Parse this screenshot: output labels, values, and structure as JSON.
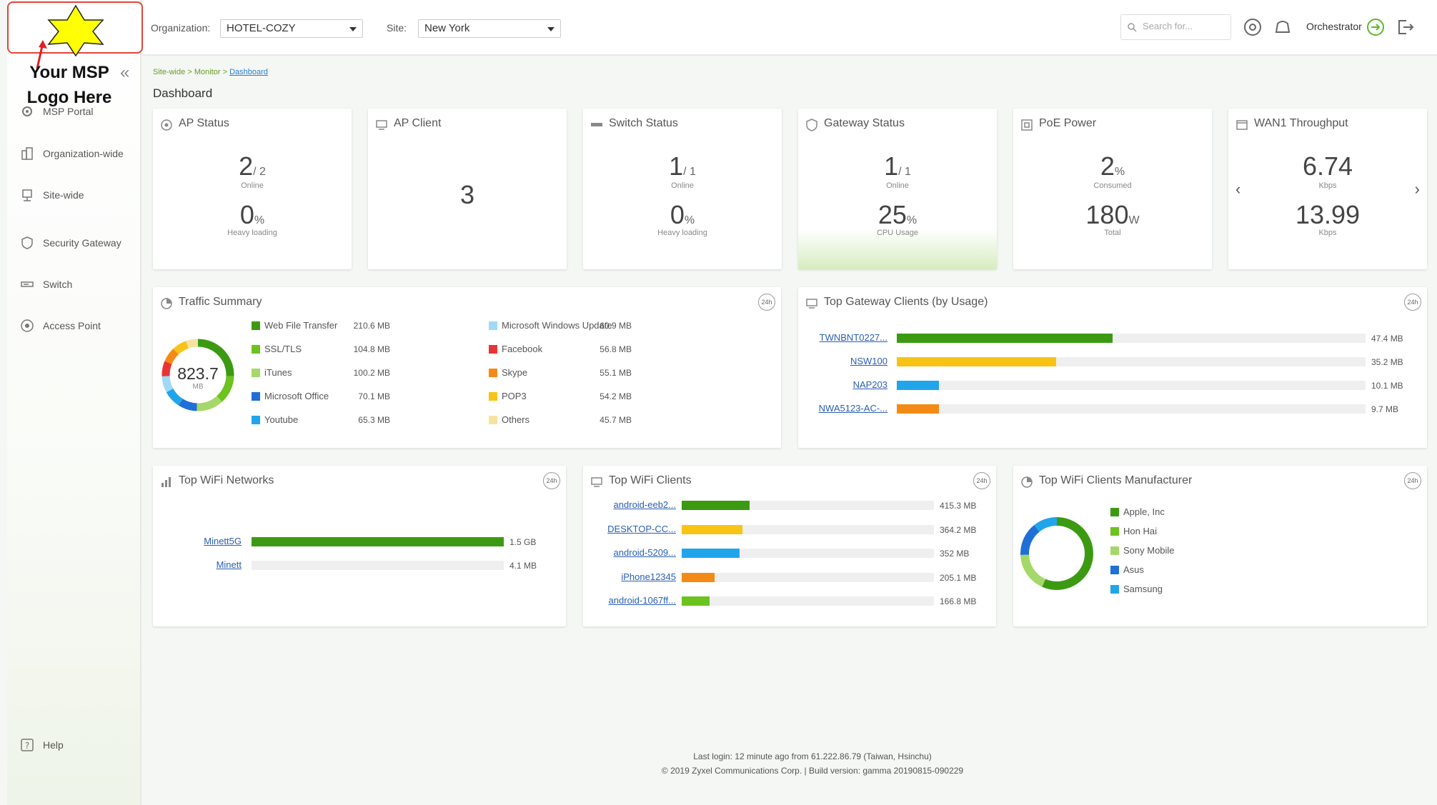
{
  "logo": {
    "text_line1": "Your MSP",
    "text_line2": "Logo Here"
  },
  "sidebar": {
    "items": [
      {
        "label": "MSP Portal"
      },
      {
        "label": "Organization-wide"
      },
      {
        "label": "Site-wide"
      },
      {
        "label": "Security Gateway"
      },
      {
        "label": "Switch"
      },
      {
        "label": "Access Point"
      }
    ],
    "help": "Help"
  },
  "topbar": {
    "org_label": "Organization:",
    "org_value": "HOTEL-COZY",
    "site_label": "Site:",
    "site_value": "New York",
    "search_placeholder": "Search for...",
    "orchestrator": "Orchestrator"
  },
  "breadcrumb": {
    "part1": "Site-wide",
    "sep": ">",
    "part2": "Monitor",
    "current": "Dashboard"
  },
  "page_title": "Dashboard",
  "cards": {
    "ap_status": {
      "title": "AP Status",
      "online": "2",
      "total": "/ 2",
      "online_label": "Online",
      "loading": "0",
      "loading_unit": "%",
      "loading_label": "Heavy loading"
    },
    "ap_client": {
      "title": "AP Client",
      "count": "3"
    },
    "switch_status": {
      "title": "Switch Status",
      "online": "1",
      "total": "/ 1",
      "online_label": "Online",
      "loading": "0",
      "loading_unit": "%",
      "loading_label": "Heavy loading"
    },
    "gateway_status": {
      "title": "Gateway Status",
      "online": "1",
      "total": "/ 1",
      "online_label": "Online",
      "cpu": "25",
      "cpu_unit": "%",
      "cpu_label": "CPU Usage"
    },
    "poe_power": {
      "title": "PoE Power",
      "consumed": "2",
      "consumed_unit": "%",
      "consumed_label": "Consumed",
      "total": "180",
      "total_unit": "W",
      "total_label": "Total"
    },
    "wan_throughput": {
      "title": "WAN1 Throughput",
      "up": "6.74",
      "up_unit": "Kbps",
      "down": "13.99",
      "down_unit": "Kbps"
    }
  },
  "traffic_summary": {
    "title": "Traffic Summary",
    "badge": "24h",
    "total": "823.7",
    "total_unit": "MB",
    "items": [
      {
        "name": "Web File Transfer",
        "value": "210.6 MB",
        "color": "#3c9a12"
      },
      {
        "name": "SSL/TLS",
        "value": "104.8 MB",
        "color": "#6cc21e"
      },
      {
        "name": "iTunes",
        "value": "100.2 MB",
        "color": "#a5d86a"
      },
      {
        "name": "Microsoft Office",
        "value": "70.1 MB",
        "color": "#1f6fd6"
      },
      {
        "name": "Youtube",
        "value": "65.3 MB",
        "color": "#21a5ea"
      },
      {
        "name": "Microsoft Windows Update",
        "value": "60.9 MB",
        "color": "#9fd9f5"
      },
      {
        "name": "Facebook",
        "value": "56.8 MB",
        "color": "#e83434"
      },
      {
        "name": "Skype",
        "value": "55.1 MB",
        "color": "#f48a16"
      },
      {
        "name": "POP3",
        "value": "54.2 MB",
        "color": "#f7c416"
      },
      {
        "name": "Others",
        "value": "45.7 MB",
        "color": "#f6e3a0"
      }
    ]
  },
  "top_gateway_clients": {
    "title": "Top Gateway Clients (by Usage)",
    "badge": "24h",
    "rows": [
      {
        "name": "TWNBNT0227...",
        "value": "47.4 MB",
        "pct": 0.46,
        "color": "#3c9a12"
      },
      {
        "name": "NSW100",
        "value": "35.2 MB",
        "pct": 0.34,
        "color": "#f7c416"
      },
      {
        "name": "NAP203",
        "value": "10.1 MB",
        "pct": 0.09,
        "color": "#21a5ea"
      },
      {
        "name": "NWA5123-AC-...",
        "value": "9.7 MB",
        "pct": 0.09,
        "color": "#f48a16"
      }
    ]
  },
  "top_wifi_networks": {
    "title": "Top WiFi Networks",
    "badge": "24h",
    "rows": [
      {
        "name": "Minett5G",
        "value": "1.5 GB",
        "pct": 1.0,
        "color": "#3c9a12"
      },
      {
        "name": "Minett",
        "value": "4.1 MB",
        "pct": 0.0,
        "color": "#3c9a12"
      }
    ]
  },
  "top_wifi_clients": {
    "title": "Top WiFi Clients",
    "badge": "24h",
    "rows": [
      {
        "name": "android-eeb2...",
        "value": "415.3 MB",
        "pct": 0.27,
        "color": "#3c9a12"
      },
      {
        "name": "DESKTOP-CC...",
        "value": "364.2 MB",
        "pct": 0.24,
        "color": "#f7c416"
      },
      {
        "name": "android-5209...",
        "value": "352 MB",
        "pct": 0.23,
        "color": "#21a5ea"
      },
      {
        "name": "iPhone12345",
        "value": "205.1 MB",
        "pct": 0.13,
        "color": "#f48a16"
      },
      {
        "name": "android-1067ff...",
        "value": "166.8 MB",
        "pct": 0.11,
        "color": "#6cc21e"
      }
    ]
  },
  "top_wifi_manufacturer": {
    "title": "Top WiFi Clients Manufacturer",
    "badge": "24h",
    "items": [
      {
        "name": "Apple, Inc",
        "color": "#3c9a12"
      },
      {
        "name": "Hon Hai",
        "color": "#6cc21e"
      },
      {
        "name": "Sony Mobile",
        "color": "#a5d86a"
      },
      {
        "name": "Asus",
        "color": "#1f6fd6"
      },
      {
        "name": "Samsung",
        "color": "#21a5ea"
      }
    ]
  },
  "footer": {
    "last_login": "Last login: 12 minute ago from 61.222.86.79 (Taiwan, Hsinchu)",
    "copyright": "© 2019 Zyxel Communications Corp. | Build version: gamma 20190815-090229"
  }
}
